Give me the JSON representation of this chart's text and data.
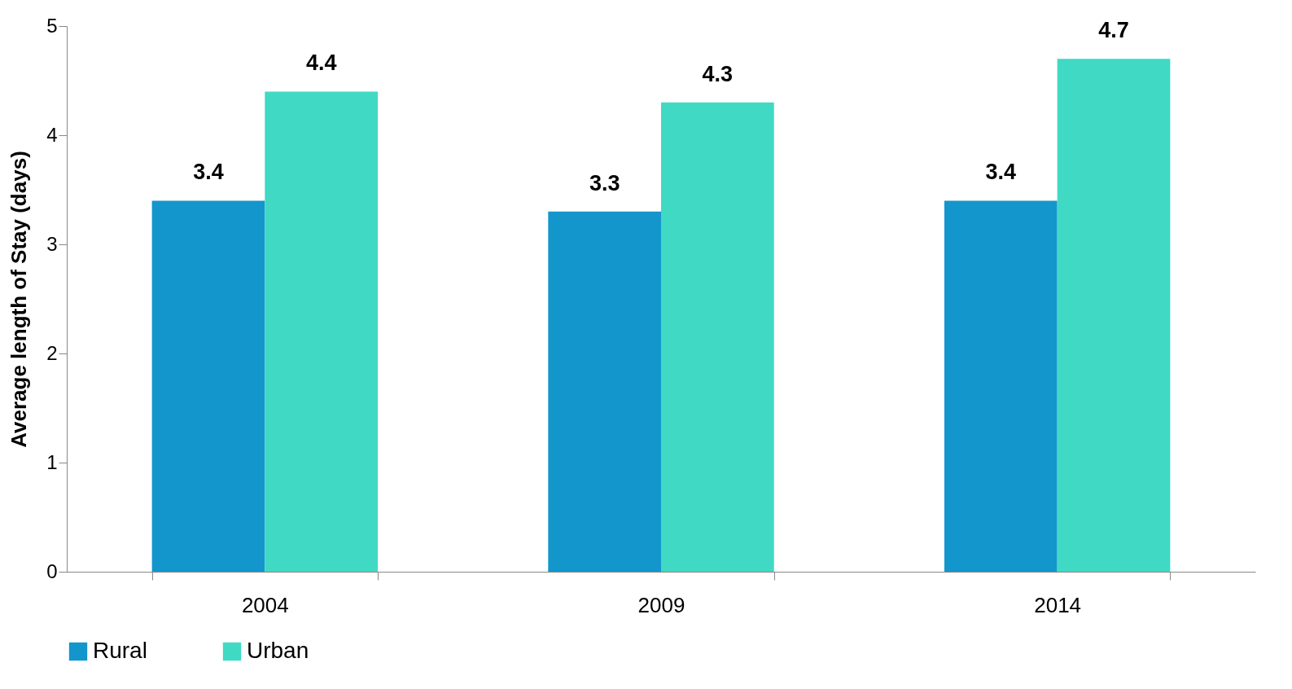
{
  "chart_data": {
    "type": "bar",
    "ylabel": "Average length of Stay (days)",
    "categories": [
      "2004",
      "2009",
      "2014"
    ],
    "series": [
      {
        "name": "Rural",
        "color": "#1396cc",
        "values": [
          3.4,
          3.3,
          3.4
        ]
      },
      {
        "name": "Urban",
        "color": "#40d9c4",
        "values": [
          4.4,
          4.3,
          4.7
        ]
      }
    ],
    "ylim": [
      0,
      5
    ],
    "yticks": [
      0,
      1,
      2,
      3,
      4,
      5
    ],
    "grid": false,
    "legend": "bottom",
    "data_labels": true
  }
}
